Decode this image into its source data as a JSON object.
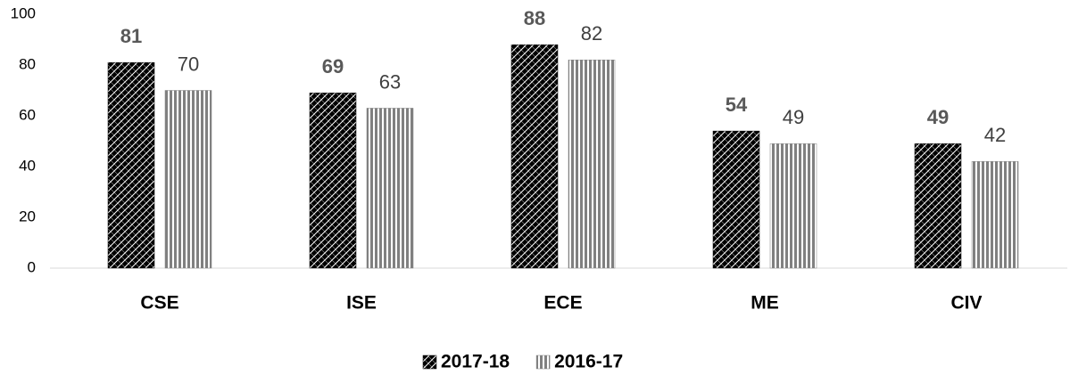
{
  "chart_data": {
    "type": "bar",
    "categories": [
      "CSE",
      "ISE",
      "ECE",
      "ME",
      "CIV"
    ],
    "series": [
      {
        "name": "2017-18",
        "color": "#000000",
        "values": [
          81,
          69,
          88,
          54,
          49
        ]
      },
      {
        "name": "2016-17",
        "color": "#808080",
        "values": [
          70,
          63,
          82,
          49,
          42
        ]
      }
    ],
    "ylim": [
      0,
      100
    ],
    "yticks": [
      0,
      20,
      40,
      60,
      80,
      100
    ],
    "grid": false,
    "legend": "bottom"
  }
}
